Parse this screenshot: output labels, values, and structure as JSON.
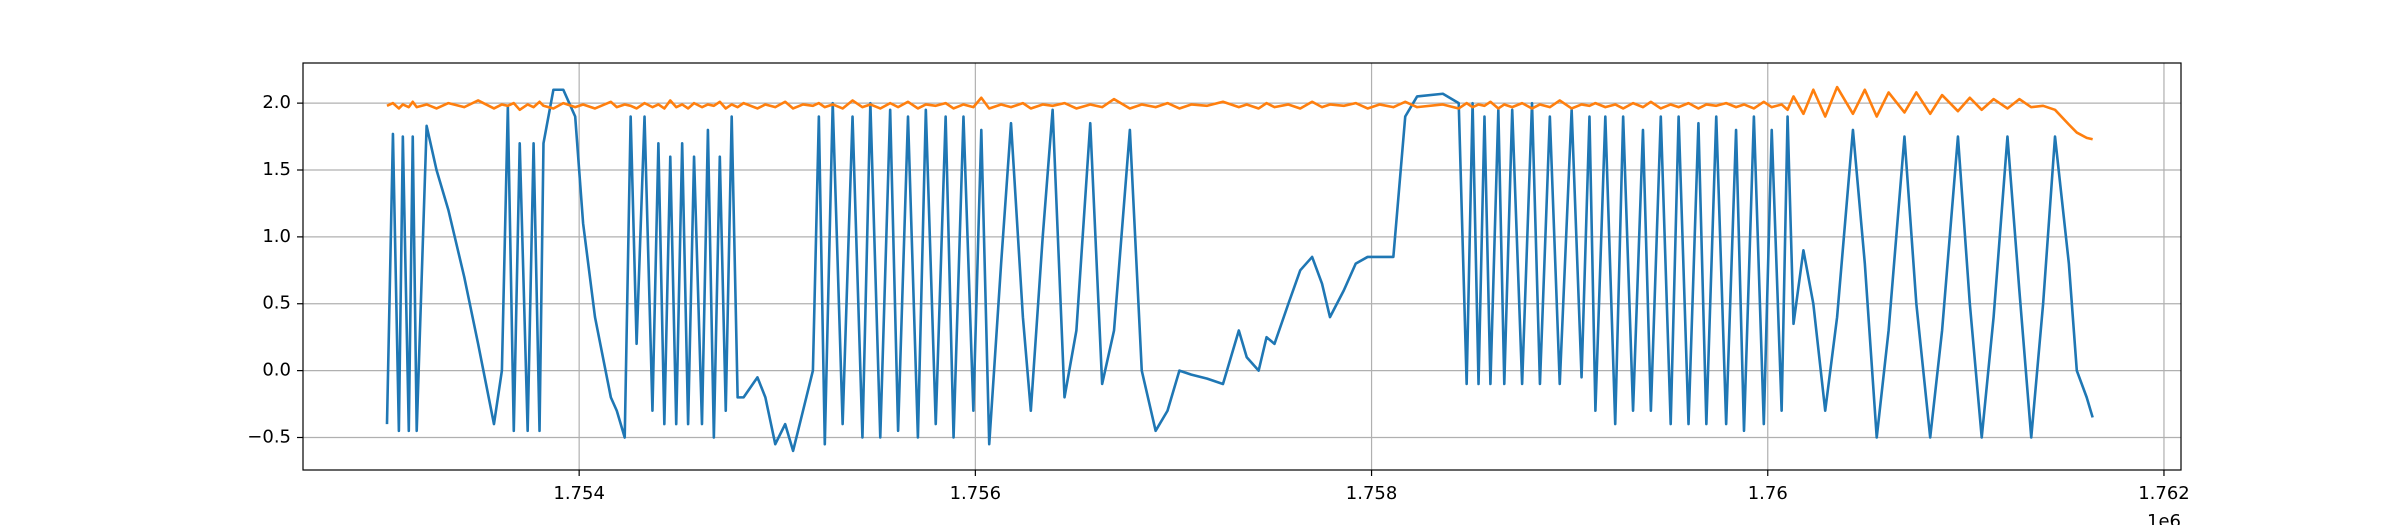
{
  "chart_data": {
    "type": "line",
    "x": [
      1.75303,
      1.75306,
      1.75309,
      1.75311,
      1.75314,
      1.75316,
      1.75318,
      1.75323,
      1.75328,
      1.75334,
      1.75342,
      1.75349,
      1.75357,
      1.75361,
      1.75364,
      1.75367,
      1.7537,
      1.75374,
      1.75377,
      1.7538,
      1.75382,
      1.75387,
      1.75392,
      1.75398,
      1.75402,
      1.75408,
      1.75416,
      1.75419,
      1.75423,
      1.75426,
      1.75429,
      1.75433,
      1.75437,
      1.7544,
      1.75443,
      1.75446,
      1.75449,
      1.75452,
      1.75455,
      1.75458,
      1.75462,
      1.75465,
      1.75468,
      1.75471,
      1.75474,
      1.75477,
      1.7548,
      1.75483,
      1.7549,
      1.75494,
      1.75499,
      1.75504,
      1.75508,
      1.75513,
      1.75518,
      1.75521,
      1.75524,
      1.75528,
      1.75533,
      1.75538,
      1.75543,
      1.75547,
      1.75552,
      1.75557,
      1.75561,
      1.75566,
      1.75571,
      1.75575,
      1.7558,
      1.75585,
      1.75589,
      1.75594,
      1.75599,
      1.75603,
      1.75607,
      1.75613,
      1.75618,
      1.75624,
      1.75628,
      1.75634,
      1.75639,
      1.75645,
      1.75651,
      1.75658,
      1.75664,
      1.7567,
      1.75678,
      1.75684,
      1.75691,
      1.75697,
      1.75703,
      1.75709,
      1.75717,
      1.75725,
      1.75733,
      1.75737,
      1.75743,
      1.75747,
      1.75751,
      1.75758,
      1.75764,
      1.7577,
      1.75775,
      1.75779,
      1.75786,
      1.75792,
      1.75798,
      1.75804,
      1.75811,
      1.75817,
      1.75823,
      1.75836,
      1.75844,
      1.75848,
      1.75851,
      1.75854,
      1.75857,
      1.7586,
      1.75864,
      1.75867,
      1.75871,
      1.75876,
      1.75881,
      1.75885,
      1.7589,
      1.75895,
      1.75901,
      1.75906,
      1.7591,
      1.75913,
      1.75918,
      1.75923,
      1.75927,
      1.75932,
      1.75937,
      1.75941,
      1.75946,
      1.75951,
      1.75955,
      1.7596,
      1.75965,
      1.75969,
      1.75974,
      1.75979,
      1.75984,
      1.75988,
      1.75993,
      1.75998,
      1.76002,
      1.76007,
      1.7601,
      1.76013,
      1.76018,
      1.76023,
      1.76029,
      1.76035,
      1.76043,
      1.76049,
      1.76055,
      1.76061,
      1.76069,
      1.76075,
      1.76082,
      1.76088,
      1.76096,
      1.76102,
      1.76108,
      1.76114,
      1.76121,
      1.76127,
      1.76133,
      1.76139,
      1.76145,
      1.76152,
      1.76156,
      1.76161,
      1.76164
    ],
    "series": [
      {
        "color": "#1f77b4",
        "values": [
          -0.4,
          1.77,
          -0.45,
          1.75,
          -0.45,
          1.75,
          -0.45,
          1.83,
          1.5,
          1.2,
          0.7,
          0.2,
          -0.4,
          0.0,
          1.97,
          -0.45,
          1.7,
          -0.45,
          1.7,
          -0.45,
          1.7,
          2.1,
          2.1,
          1.9,
          1.1,
          0.4,
          -0.2,
          -0.3,
          -0.5,
          1.9,
          0.2,
          1.9,
          -0.3,
          1.7,
          -0.4,
          1.6,
          -0.4,
          1.7,
          -0.4,
          1.6,
          -0.4,
          1.8,
          -0.5,
          1.6,
          -0.3,
          1.9,
          -0.2,
          -0.2,
          -0.05,
          -0.2,
          -0.55,
          -0.4,
          -0.6,
          -0.3,
          0.0,
          1.9,
          -0.55,
          2.0,
          -0.4,
          1.9,
          -0.5,
          2.0,
          -0.5,
          1.95,
          -0.45,
          1.9,
          -0.5,
          1.95,
          -0.4,
          1.9,
          -0.5,
          1.9,
          -0.3,
          1.8,
          -0.55,
          0.8,
          1.85,
          0.4,
          -0.3,
          1.0,
          1.95,
          -0.2,
          0.3,
          1.85,
          -0.1,
          0.3,
          1.8,
          0.0,
          -0.45,
          -0.3,
          0.0,
          -0.03,
          -0.06,
          -0.1,
          0.3,
          0.1,
          0.0,
          0.25,
          0.2,
          0.5,
          0.75,
          0.85,
          0.65,
          0.4,
          0.6,
          0.8,
          0.85,
          0.85,
          0.85,
          1.9,
          2.05,
          2.07,
          2.0,
          -0.1,
          2.0,
          -0.1,
          1.9,
          -0.1,
          1.95,
          -0.1,
          1.95,
          -0.1,
          2.0,
          -0.1,
          1.9,
          -0.1,
          1.95,
          -0.05,
          1.9,
          -0.3,
          1.9,
          -0.4,
          1.9,
          -0.3,
          1.8,
          -0.3,
          1.9,
          -0.4,
          1.9,
          -0.4,
          1.85,
          -0.4,
          1.9,
          -0.4,
          1.8,
          -0.45,
          1.9,
          -0.4,
          1.8,
          -0.3,
          1.9,
          0.35,
          0.9,
          0.5,
          -0.3,
          0.4,
          1.8,
          0.8,
          -0.5,
          0.3,
          1.75,
          0.5,
          -0.5,
          0.3,
          1.75,
          0.5,
          -0.5,
          0.4,
          1.75,
          0.6,
          -0.5,
          0.5,
          1.75,
          0.8,
          0.0,
          -0.2,
          -0.35
        ]
      },
      {
        "color": "#ff7f0e",
        "values": [
          1.98,
          2.0,
          1.96,
          1.99,
          1.97,
          2.01,
          1.97,
          1.99,
          1.96,
          2.0,
          1.97,
          2.02,
          1.96,
          1.99,
          1.98,
          2.0,
          1.95,
          1.99,
          1.97,
          2.01,
          1.98,
          1.96,
          2.0,
          1.97,
          1.99,
          1.96,
          2.01,
          1.97,
          1.99,
          1.98,
          1.96,
          2.0,
          1.97,
          1.99,
          1.96,
          2.02,
          1.97,
          1.99,
          1.96,
          2.0,
          1.97,
          1.99,
          1.98,
          2.01,
          1.96,
          1.99,
          1.97,
          2.0,
          1.96,
          1.99,
          1.97,
          2.01,
          1.96,
          1.99,
          1.98,
          2.0,
          1.97,
          1.99,
          1.96,
          2.02,
          1.97,
          1.99,
          1.96,
          2.0,
          1.97,
          2.01,
          1.96,
          1.99,
          1.98,
          2.0,
          1.96,
          1.99,
          1.97,
          2.04,
          1.96,
          1.99,
          1.97,
          2.0,
          1.96,
          1.99,
          1.98,
          2.0,
          1.96,
          1.99,
          1.97,
          2.03,
          1.96,
          1.99,
          1.97,
          2.0,
          1.96,
          1.99,
          1.98,
          2.01,
          1.97,
          1.99,
          1.96,
          2.0,
          1.97,
          1.99,
          1.96,
          2.01,
          1.97,
          1.99,
          1.98,
          2.0,
          1.96,
          1.99,
          1.97,
          2.01,
          1.97,
          1.99,
          1.96,
          2.0,
          1.97,
          1.99,
          1.98,
          2.01,
          1.96,
          1.99,
          1.97,
          2.0,
          1.96,
          1.99,
          1.97,
          2.02,
          1.96,
          1.99,
          1.98,
          2.0,
          1.97,
          1.99,
          1.96,
          2.0,
          1.97,
          2.01,
          1.96,
          1.99,
          1.97,
          2.0,
          1.96,
          1.99,
          1.98,
          2.0,
          1.97,
          1.99,
          1.96,
          2.01,
          1.97,
          1.99,
          1.95,
          2.05,
          1.92,
          2.1,
          1.9,
          2.12,
          1.92,
          2.1,
          1.9,
          2.08,
          1.93,
          2.08,
          1.92,
          2.06,
          1.94,
          2.04,
          1.95,
          2.03,
          1.96,
          2.03,
          1.97,
          1.98,
          1.95,
          1.84,
          1.78,
          1.74,
          1.73
        ]
      }
    ],
    "xlim": [
      1.752606,
      1.762086
    ],
    "ylim": [
      -0.743,
      2.3
    ],
    "xticks": [
      1.754,
      1.756,
      1.758,
      1.76,
      1.762
    ],
    "x_offset_text": "1e6",
    "yticks": [
      {
        "value": -0.5,
        "label": "−0.5"
      },
      {
        "value": 0,
        "label": "0.0"
      },
      0.5,
      {
        "value": 1,
        "label": "1.0"
      },
      1.5,
      {
        "value": 2,
        "label": "2.0"
      }
    ],
    "grid": true
  }
}
